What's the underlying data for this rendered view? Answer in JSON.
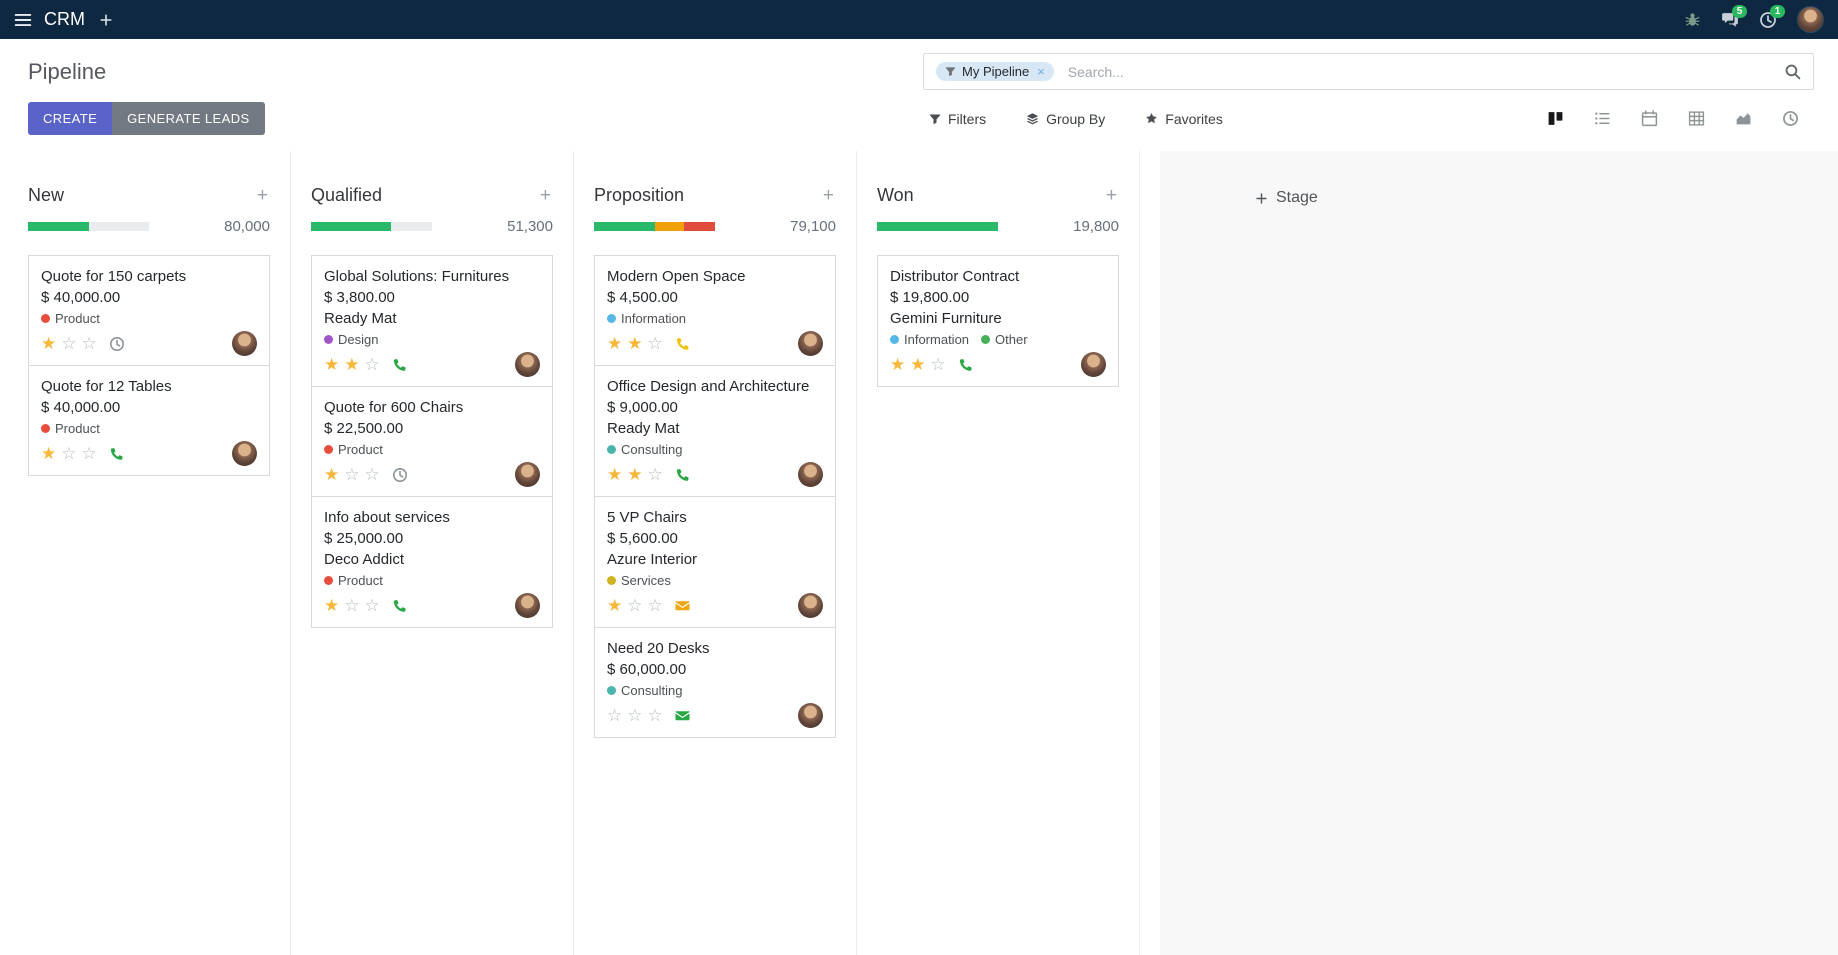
{
  "topbar": {
    "app_name": "CRM",
    "menu_icon": "hamburger-icon",
    "add_icon": "plus-icon",
    "systray_icons": [
      "bug-icon",
      "messages-icon",
      "activities-clock-icon",
      "user-avatar"
    ],
    "messages_badge": "5",
    "activities_badge": "1"
  },
  "control_panel": {
    "title": "Pipeline",
    "search": {
      "facet_label": "My Pipeline",
      "facet_icon": "filter-funnel-icon",
      "remove_label": "×",
      "placeholder": "Search...",
      "search_icon": "search-icon"
    },
    "create_label": "CREATE",
    "generate_leads_label": "GENERATE LEADS",
    "filters_label": "Filters",
    "group_by_label": "Group By",
    "favorites_label": "Favorites",
    "view_switcher": [
      {
        "name": "kanban",
        "active": true
      },
      {
        "name": "list",
        "active": false
      },
      {
        "name": "calendar",
        "active": false
      },
      {
        "name": "pivot",
        "active": false
      },
      {
        "name": "graph",
        "active": false
      },
      {
        "name": "activity",
        "active": false
      }
    ]
  },
  "board": {
    "add_card_label": "+",
    "add_stage_label": "Stage",
    "columns": [
      {
        "name": "New",
        "total": "80,000",
        "progress": [
          {
            "color": "green",
            "pct": 50
          }
        ],
        "cards": [
          {
            "title": "Quote for 150 carpets",
            "amount": "$ 40,000.00",
            "tags": [
              {
                "label": "Product",
                "color": "red"
              }
            ],
            "stars_filled": "★",
            "stars_empty": "☆☆",
            "activity_icon": "clock-icon",
            "activity_state": "gray"
          },
          {
            "title": "Quote for 12 Tables",
            "amount": "$ 40,000.00",
            "tags": [
              {
                "label": "Product",
                "color": "red"
              }
            ],
            "stars_filled": "★",
            "stars_empty": "☆☆",
            "activity_icon": "phone-icon",
            "activity_state": "green"
          }
        ]
      },
      {
        "name": "Qualified",
        "total": "51,300",
        "progress": [
          {
            "color": "green",
            "pct": 66
          }
        ],
        "cards": [
          {
            "title": "Global Solutions: Furnitures",
            "amount": "$ 3,800.00",
            "partner": "Ready Mat",
            "tags": [
              {
                "label": "Design",
                "color": "purple"
              }
            ],
            "stars_filled": "★★",
            "stars_empty": "☆",
            "activity_icon": "phone-icon",
            "activity_state": "green"
          },
          {
            "title": "Quote for 600 Chairs",
            "amount": "$ 22,500.00",
            "tags": [
              {
                "label": "Product",
                "color": "red"
              }
            ],
            "stars_filled": "★",
            "stars_empty": "☆☆",
            "activity_icon": "clock-icon",
            "activity_state": "gray"
          },
          {
            "title": "Info about services",
            "amount": "$ 25,000.00",
            "partner": "Deco Addict",
            "tags": [
              {
                "label": "Product",
                "color": "red"
              }
            ],
            "stars_filled": "★",
            "stars_empty": "☆☆",
            "activity_icon": "phone-icon",
            "activity_state": "green"
          }
        ]
      },
      {
        "name": "Proposition",
        "total": "79,100",
        "progress": [
          {
            "color": "green",
            "pct": 50
          },
          {
            "color": "yellow",
            "pct": 24
          },
          {
            "color": "red",
            "pct": 26
          }
        ],
        "cards": [
          {
            "title": "Modern Open Space",
            "amount": "$ 4,500.00",
            "tags": [
              {
                "label": "Information",
                "color": "blue"
              }
            ],
            "stars_filled": "★★",
            "stars_empty": "☆",
            "activity_icon": "phone-icon",
            "activity_state": "yellow"
          },
          {
            "title": "Office Design and Architecture",
            "amount": "$ 9,000.00",
            "partner": "Ready Mat",
            "tags": [
              {
                "label": "Consulting",
                "color": "teal"
              }
            ],
            "stars_filled": "★★",
            "stars_empty": "☆",
            "activity_icon": "phone-icon",
            "activity_state": "green"
          },
          {
            "title": "5 VP Chairs",
            "amount": "$ 5,600.00",
            "partner": "Azure Interior",
            "tags": [
              {
                "label": "Services",
                "color": "yellow"
              }
            ],
            "stars_filled": "★",
            "stars_empty": "☆☆",
            "activity_icon": "envelope-icon",
            "activity_state": "orange"
          },
          {
            "title": "Need 20 Desks",
            "amount": "$ 60,000.00",
            "tags": [
              {
                "label": "Consulting",
                "color": "teal"
              }
            ],
            "stars_filled": "",
            "stars_empty": "☆☆☆",
            "activity_icon": "envelope-icon",
            "activity_state": "green"
          }
        ]
      },
      {
        "name": "Won",
        "total": "19,800",
        "progress": [
          {
            "color": "green",
            "pct": 100
          }
        ],
        "cards": [
          {
            "title": "Distributor Contract",
            "amount": "$ 19,800.00",
            "partner": "Gemini Furniture",
            "tags": [
              {
                "label": "Information",
                "color": "blue"
              },
              {
                "label": "Other",
                "color": "green"
              }
            ],
            "stars_filled": "★★",
            "stars_empty": "☆",
            "activity_icon": "phone-icon",
            "activity_state": "green"
          }
        ]
      }
    ]
  },
  "colors": {
    "topbar_bg": "#0e2841",
    "primary_button": "#5a63c8",
    "secondary_button": "#737982",
    "progress_green": "#2ab86b",
    "progress_yellow": "#efa00b",
    "progress_red": "#e04b3b",
    "badge_green": "#2ab85f",
    "star_gold": "#f8b739",
    "tag_red": "#e74c3c",
    "tag_purple": "#a155c9",
    "tag_blue": "#55b7e6",
    "tag_teal": "#4ab5ab",
    "tag_yellow": "#cfb321",
    "tag_green": "#45b058",
    "activity_green": "#28a745",
    "activity_yellow": "#f0c30f",
    "activity_orange": "#eda712"
  }
}
